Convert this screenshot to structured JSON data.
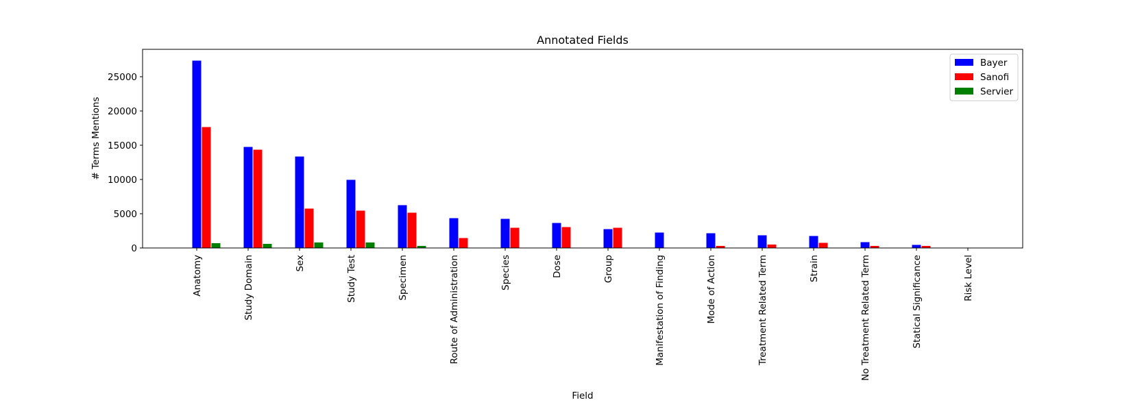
{
  "chart_data": {
    "type": "bar",
    "title": "Annotated Fields",
    "xlabel": "Field",
    "ylabel": "# Terms Mentions",
    "ylim": [
      0,
      29000
    ],
    "yticks": [
      0,
      5000,
      10000,
      15000,
      20000,
      25000
    ],
    "grid": false,
    "legend_position": "top-right",
    "categories": [
      "Anatomy",
      "Study Domain",
      "Sex",
      "Study Test",
      "Specimen",
      "Route of Administration",
      "Species",
      "Dose",
      "Group",
      "Manifestation of Finding",
      "Mode of Action",
      "Treatment Related Term",
      "Strain",
      "No Treatment Related Term",
      "Statical Significance",
      "Risk Level"
    ],
    "series": [
      {
        "name": "Bayer",
        "color": "#0000ff",
        "values": [
          27400,
          14800,
          13400,
          10000,
          6300,
          4400,
          4300,
          3700,
          2800,
          2300,
          2200,
          1900,
          1800,
          900,
          500,
          0
        ]
      },
      {
        "name": "Sanofi",
        "color": "#ff0000",
        "values": [
          17700,
          14400,
          5800,
          5500,
          5200,
          1500,
          3000,
          3100,
          3000,
          0,
          350,
          550,
          800,
          350,
          350,
          0
        ]
      },
      {
        "name": "Servier",
        "color": "#008000",
        "values": [
          750,
          650,
          850,
          850,
          350,
          0,
          0,
          100,
          0,
          0,
          0,
          0,
          0,
          0,
          0,
          0
        ]
      }
    ]
  }
}
